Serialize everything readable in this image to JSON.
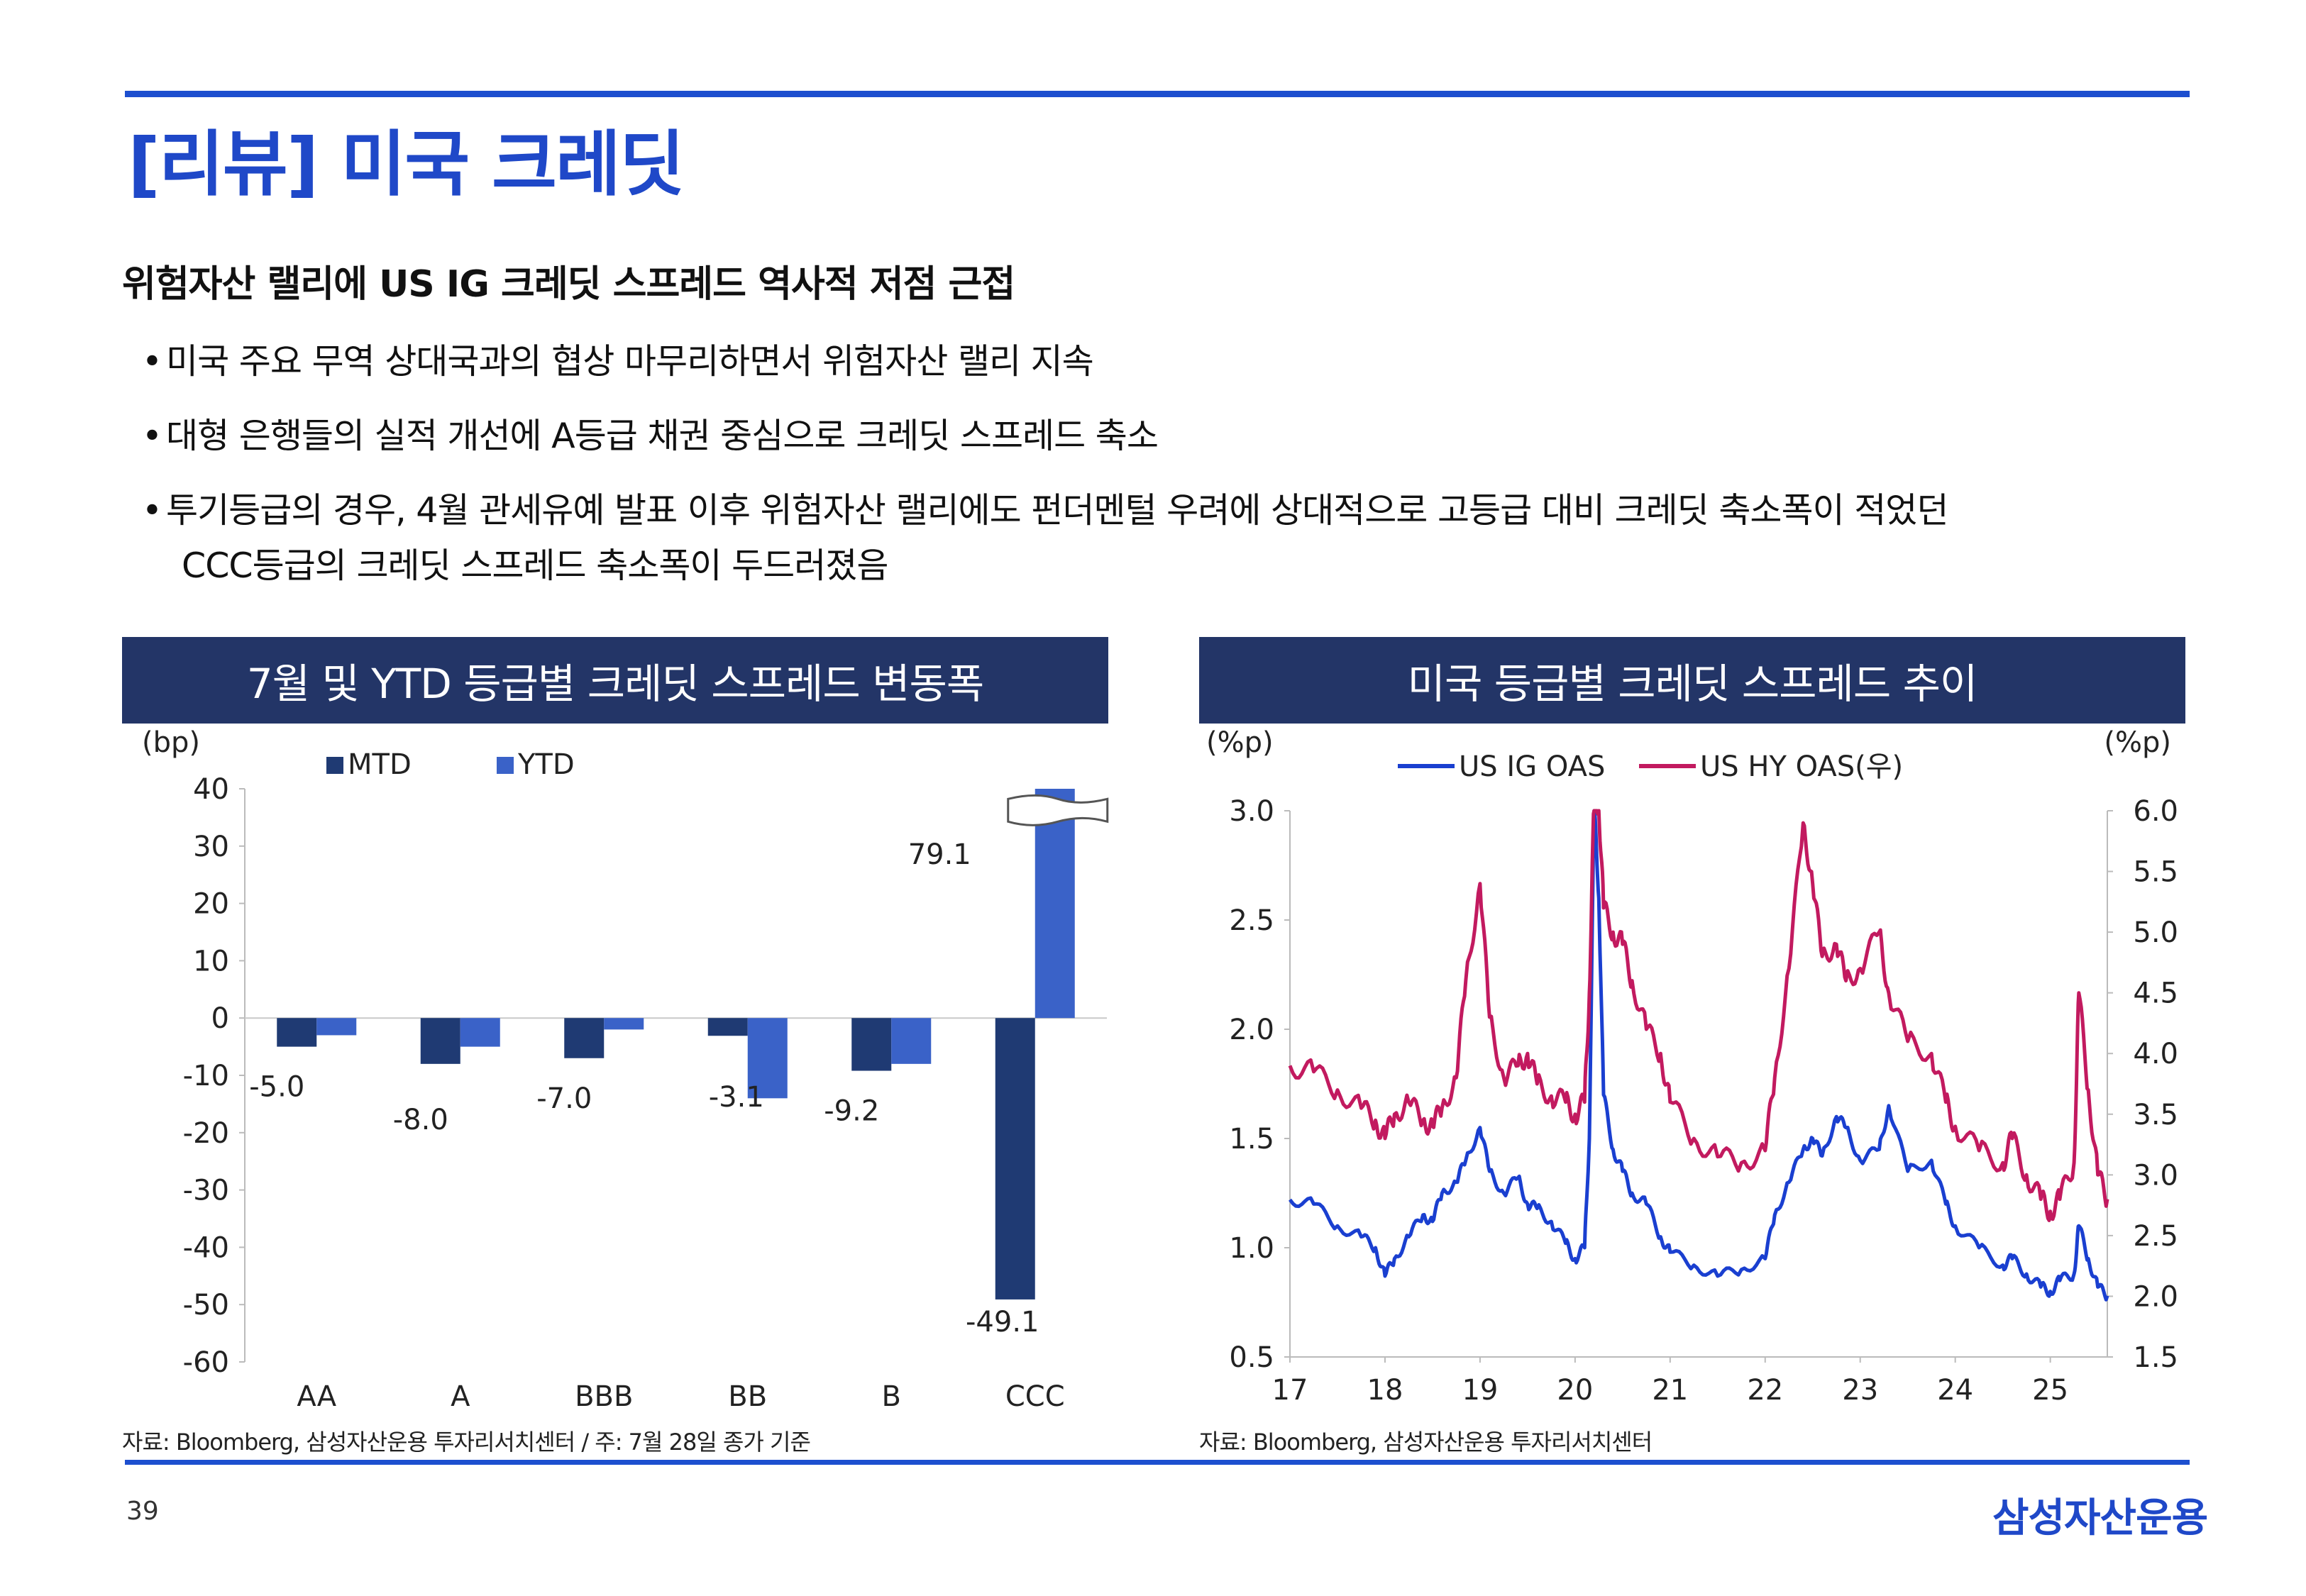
{
  "slide": {
    "title": "[리뷰] 미국 크레딧",
    "headline": "위험자산 랠리에 US IG 크레딧 스프레드 역사적 저점 근접",
    "bullets": [
      "미국 주요 무역 상대국과의 협상 마무리하면서 위험자산 랠리 지속",
      "대형 은행들의 실적 개선에 A등급 채권 중심으로 크레딧 스프레드 축소",
      "투기등급의 경우, 4월 관세유예 발표 이후 위험자산 랠리에도 펀더멘털 우려에 상대적으로 고등급 대비 크레딧 축소폭이 적었던"
    ],
    "bullet_continuation": "CCC등급의 크레딧 스프레드 축소폭이 두드러졌음",
    "page_number": "39",
    "brand": "삼성자산운용",
    "colors": {
      "accent": "#1f48c8",
      "panel_header": "#233567"
    }
  },
  "left_panel": {
    "header": "7월 및 YTD 등급별 크레딧 스프레드 변동폭",
    "source": "자료: Bloomberg, 삼성자산운용 투자리서치센터 / 주: 7월 28일 종가 기준",
    "axis_unit": "(bp)",
    "break_marker_icon": "axis-break-icon"
  },
  "right_panel": {
    "header": "미국 등급별 크레딧 스프레드 추이",
    "source": "자료: Bloomberg, 삼성자산운용 투자리서치센터",
    "left_unit": "(%p)",
    "right_unit": "(%p)"
  },
  "chart_data": [
    {
      "type": "bar",
      "categories": [
        "AA",
        "A",
        "BBB",
        "BB",
        "B",
        "CCC"
      ],
      "series": [
        {
          "name": "MTD",
          "color": "#1f3a73",
          "values": [
            -5.0,
            -8.0,
            -7.0,
            -3.1,
            -9.2,
            -49.1
          ]
        },
        {
          "name": "YTD",
          "color": "#3a62c8",
          "values": [
            -3.0,
            -5.0,
            -2.0,
            -14.0,
            -8.0,
            79.1
          ]
        }
      ],
      "data_labels": [
        "-5.0",
        "-8.0",
        "-7.0",
        "-3.1",
        "-9.2",
        "-49.1",
        "79.1"
      ],
      "ylabel": "(bp)",
      "ylim": [
        -60,
        40
      ],
      "yticks": [
        "40",
        "30",
        "20",
        "10",
        "0",
        "-10",
        "-20",
        "-30",
        "-40",
        "-50",
        "-60"
      ],
      "axis_break": "YTD CCC bar truncated at 40",
      "legend": "top"
    },
    {
      "type": "line",
      "x_range": [
        2017,
        2025.6
      ],
      "xticks": [
        "17",
        "18",
        "19",
        "20",
        "21",
        "22",
        "23",
        "24",
        "25"
      ],
      "y_left": {
        "label": "(%p)",
        "range": [
          0.5,
          3.0
        ],
        "ticks": [
          "3.0",
          "2.5",
          "2.0",
          "1.5",
          "1.0",
          "0.5"
        ]
      },
      "y_right": {
        "label": "(%p)",
        "range": [
          1.5,
          6.0
        ],
        "ticks": [
          "6.0",
          "5.5",
          "5.0",
          "4.5",
          "4.0",
          "3.5",
          "3.0",
          "2.5",
          "2.0",
          "1.5"
        ]
      },
      "legend": "top",
      "series": [
        {
          "name": "US IG OAS",
          "axis": "left",
          "color": "#1a3fd0",
          "x": [
            2017.0,
            2017.25,
            2017.5,
            2017.75,
            2017.9,
            2018.0,
            2018.1,
            2018.25,
            2018.4,
            2018.5,
            2018.6,
            2018.75,
            2018.85,
            2019.0,
            2019.1,
            2019.25,
            2019.4,
            2019.5,
            2019.6,
            2019.75,
            2019.9,
            2020.0,
            2020.1,
            2020.15,
            2020.2,
            2020.25,
            2020.3,
            2020.4,
            2020.5,
            2020.6,
            2020.75,
            2020.9,
            2021.0,
            2021.25,
            2021.5,
            2021.75,
            2022.0,
            2022.1,
            2022.25,
            2022.4,
            2022.5,
            2022.6,
            2022.75,
            2022.85,
            2023.0,
            2023.2,
            2023.3,
            2023.5,
            2023.75,
            2023.9,
            2024.0,
            2024.25,
            2024.5,
            2024.6,
            2024.75,
            2024.9,
            2025.0,
            2025.1,
            2025.25,
            2025.3,
            2025.4,
            2025.5,
            2025.6
          ],
          "values": [
            1.22,
            1.2,
            1.1,
            1.05,
            1.0,
            0.87,
            0.95,
            1.05,
            1.15,
            1.12,
            1.25,
            1.3,
            1.4,
            1.55,
            1.35,
            1.25,
            1.32,
            1.2,
            1.18,
            1.12,
            1.02,
            0.95,
            1.0,
            1.5,
            3.05,
            2.6,
            1.7,
            1.45,
            1.35,
            1.25,
            1.2,
            1.05,
            0.98,
            0.92,
            0.87,
            0.9,
            0.95,
            1.15,
            1.3,
            1.45,
            1.5,
            1.42,
            1.6,
            1.55,
            1.4,
            1.45,
            1.65,
            1.35,
            1.4,
            1.2,
            1.1,
            1.0,
            0.92,
            0.95,
            0.88,
            0.82,
            0.8,
            0.85,
            0.88,
            1.1,
            0.95,
            0.82,
            0.78
          ]
        },
        {
          "name": "US HY OAS(우)",
          "axis": "right",
          "color": "#c21a5f",
          "x": [
            2017.0,
            2017.25,
            2017.5,
            2017.75,
            2017.9,
            2018.0,
            2018.1,
            2018.25,
            2018.4,
            2018.5,
            2018.6,
            2018.75,
            2018.85,
            2019.0,
            2019.1,
            2019.25,
            2019.4,
            2019.5,
            2019.6,
            2019.75,
            2019.9,
            2020.0,
            2020.1,
            2020.15,
            2020.2,
            2020.25,
            2020.3,
            2020.4,
            2020.5,
            2020.6,
            2020.75,
            2020.9,
            2021.0,
            2021.25,
            2021.5,
            2021.75,
            2022.0,
            2022.1,
            2022.25,
            2022.4,
            2022.5,
            2022.6,
            2022.75,
            2022.85,
            2023.0,
            2023.2,
            2023.3,
            2023.5,
            2023.75,
            2023.9,
            2024.0,
            2024.25,
            2024.5,
            2024.6,
            2024.75,
            2024.9,
            2025.0,
            2025.1,
            2025.25,
            2025.3,
            2025.4,
            2025.5,
            2025.6
          ],
          "values": [
            3.9,
            3.85,
            3.7,
            3.55,
            3.45,
            3.3,
            3.5,
            3.6,
            3.45,
            3.4,
            3.55,
            3.8,
            4.6,
            5.4,
            4.3,
            3.8,
            3.9,
            4.0,
            3.75,
            3.65,
            3.6,
            3.5,
            3.6,
            4.5,
            6.1,
            6.05,
            5.2,
            5.0,
            4.9,
            4.6,
            4.2,
            4.0,
            3.6,
            3.3,
            3.15,
            3.1,
            3.2,
            3.8,
            4.7,
            5.9,
            5.4,
            4.8,
            4.9,
            4.6,
            4.7,
            5.0,
            4.5,
            4.1,
            4.0,
            3.6,
            3.4,
            3.2,
            3.1,
            3.3,
            3.0,
            2.8,
            2.7,
            2.8,
            3.1,
            4.5,
            3.7,
            3.0,
            2.8
          ]
        }
      ]
    }
  ]
}
